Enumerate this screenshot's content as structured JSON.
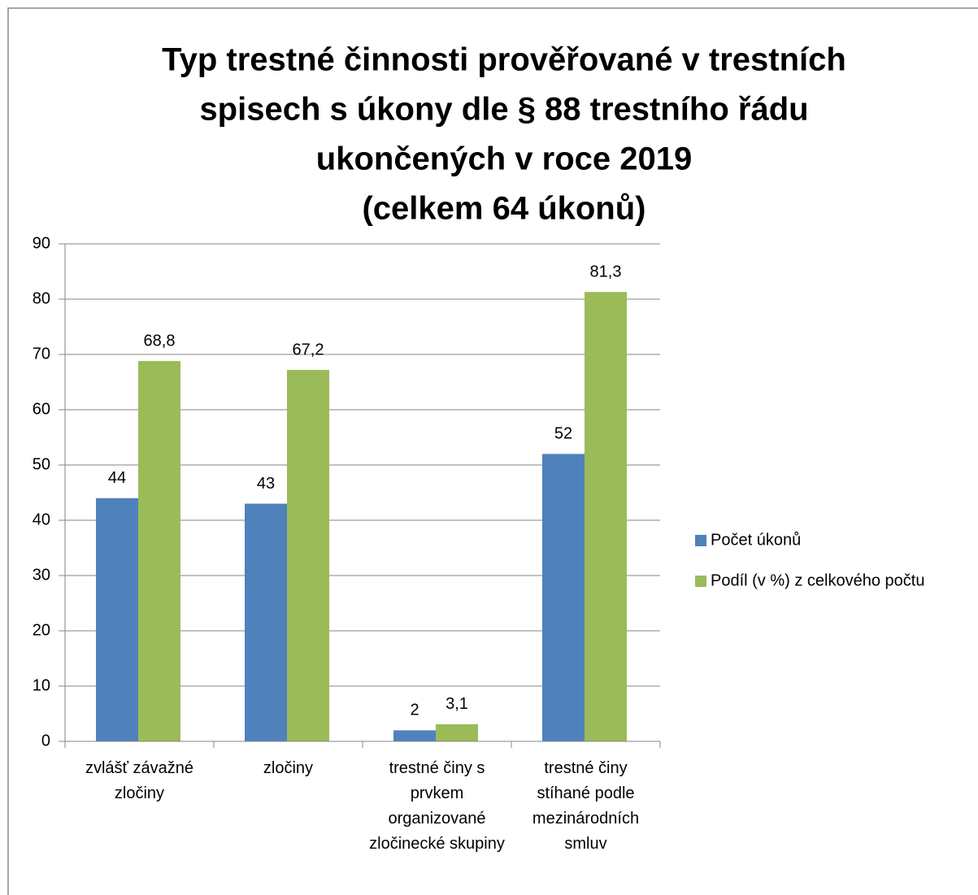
{
  "chart_data": {
    "type": "bar",
    "title": [
      "Typ trestné činnosti prověřované v trestních",
      "spisech s úkony dle § 88 trestního řádu",
      "ukončených v roce 2019",
      "(celkem 64 úkonů)"
    ],
    "categories": [
      "zvlášť závažné zločiny",
      "zločiny",
      "trestné činy s prvkem organizované zločinecké skupiny",
      "trestné činy stíhané podle mezinárodních smluv"
    ],
    "series": [
      {
        "name": "Počet úkonů",
        "color": "#4f81bd",
        "values": [
          44,
          43,
          2,
          52
        ]
      },
      {
        "name": "Podíl (v %) z celkového počtu",
        "color": "#9bbb59",
        "values": [
          68.8,
          67.2,
          3.1,
          81.3
        ],
        "value_labels": [
          "68,8",
          "67,2",
          "3,1",
          "81,3"
        ]
      }
    ],
    "ylim": [
      0,
      90
    ],
    "yticks": [
      0,
      10,
      20,
      30,
      40,
      50,
      60,
      70,
      80,
      90
    ],
    "grid": true,
    "legend": "right"
  }
}
